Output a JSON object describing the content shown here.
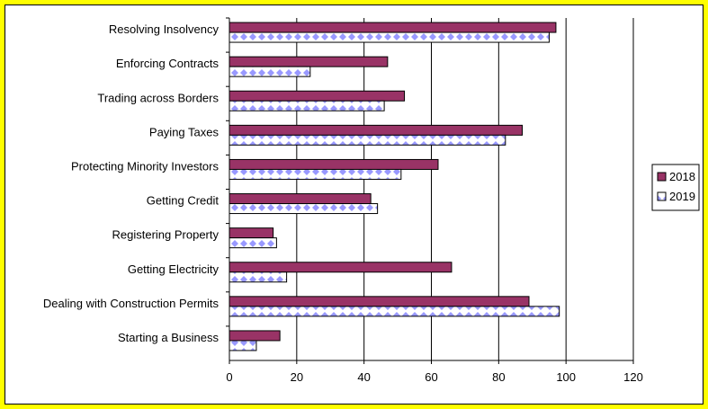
{
  "chart_data": {
    "type": "bar",
    "orientation": "horizontal",
    "categories": [
      "Starting a Business",
      "Dealing with Construction Permits",
      "Getting Electricity",
      "Registering Property",
      "Getting Credit",
      "Protecting Minority Investors",
      "Paying Taxes",
      "Trading across Borders",
      "Enforcing Contracts",
      "Resolving Insolvency"
    ],
    "series": [
      {
        "name": "2018",
        "color": "#993366",
        "pattern": "solid",
        "values": [
          15,
          89,
          66,
          13,
          42,
          62,
          87,
          52,
          47,
          97
        ]
      },
      {
        "name": "2019",
        "color": "#9999ff",
        "pattern": "diamond",
        "values": [
          8,
          98,
          17,
          14,
          44,
          51,
          82,
          46,
          24,
          95
        ]
      }
    ],
    "xlim": [
      0,
      120
    ],
    "xticks": [
      0,
      20,
      40,
      60,
      80,
      100,
      120
    ],
    "grid": "vertical-major",
    "legend": "right",
    "title": "",
    "xlabel": "",
    "ylabel": ""
  },
  "colors": {
    "frame": "#ffff00",
    "background": "#ffffff",
    "gridline": "#000000"
  }
}
